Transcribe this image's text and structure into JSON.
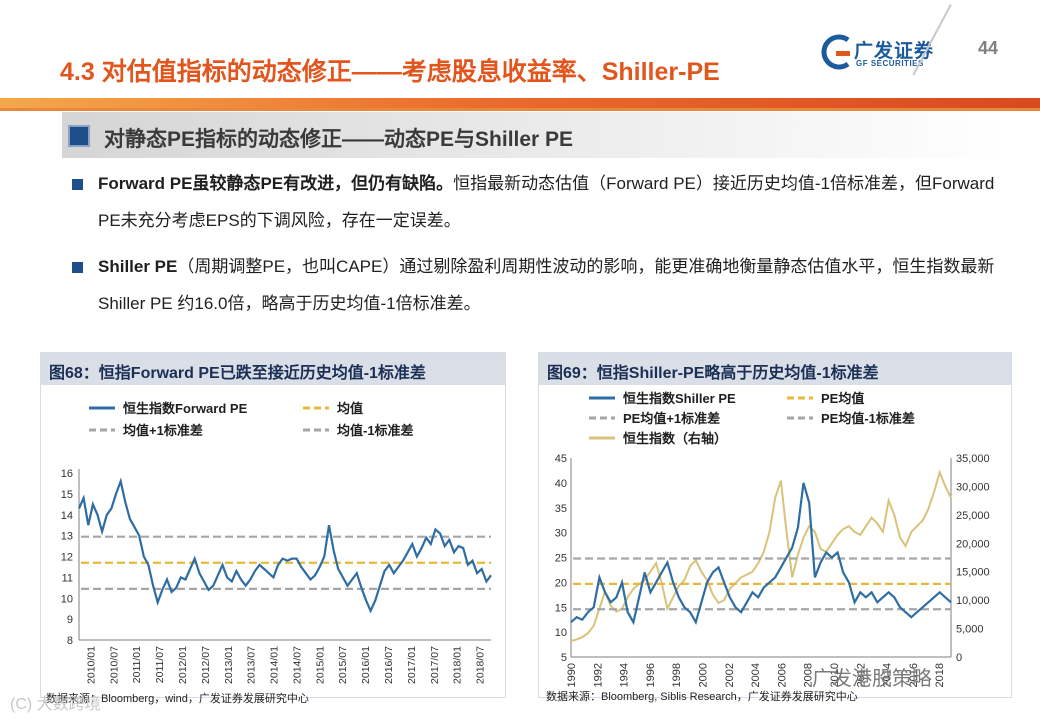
{
  "header": {
    "title": "4.3 对估值指标的动态修正——考虑股息收益率、Shiller-PE",
    "logo_cn": "广发证券",
    "logo_en": "GF SECURITIES",
    "page_number": "44",
    "logo_icon": "gf-logo-icon"
  },
  "section": {
    "heading": "对静态PE指标的动态修正——动态PE与Shiller PE"
  },
  "bullets": [
    {
      "bold": "Forward PE虽较静态PE有改进，但仍有缺陷。",
      "text": "恒指最新动态估值（Forward PE）接近历史均值-1倍标准差，但Forward PE未充分考虑EPS的下调风险，存在一定误差。"
    },
    {
      "bold": "Shiller PE",
      "text": "（周期调整PE，也叫CAPE）通过剔除盈利周期性波动的影响，能更准确地衡量静态估值水平，恒生指数最新Shiller PE 约16.0倍，略高于历史均值-1倍标准差。"
    }
  ],
  "watermarks": {
    "left": "(C) 大数跨境",
    "right": "广发港股策略"
  },
  "chart_data": [
    {
      "type": "line",
      "title": "图68：恒指Forward PE已跌至接近历史均值-1标准差",
      "source": "数据来源：Bloomberg，wind，广发证券发展研究中心",
      "legend": [
        "恒生指数Forward PE",
        "均值",
        "均值+1标准差",
        "均值-1标准差"
      ],
      "ylim": [
        8,
        16
      ],
      "yticks": [
        "8",
        "9",
        "10",
        "11",
        "12",
        "13",
        "14",
        "15",
        "16"
      ],
      "xticks": [
        "2010/01",
        "2010/07",
        "2011/01",
        "2011/07",
        "2012/01",
        "2012/07",
        "2013/01",
        "2013/07",
        "2014/01",
        "2014/07",
        "2015/01",
        "2015/07",
        "2016/01",
        "2016/07",
        "2017/01",
        "2017/07",
        "2018/01",
        "2018/07"
      ],
      "colors": {
        "series": "#2e6da4",
        "mean": "#e6b93c",
        "band": "#a6a6a6"
      },
      "series": [
        {
          "name": "恒生指数Forward PE",
          "x_start": 2010.0,
          "x_end": 2018.9,
          "values": [
            14.3,
            14.8,
            13.5,
            14.5,
            14.0,
            13.2,
            14.0,
            14.3,
            15.0,
            15.6,
            14.6,
            13.8,
            13.4,
            13.0,
            12.0,
            11.6,
            10.6,
            9.8,
            10.4,
            10.9,
            10.3,
            10.5,
            11.0,
            10.9,
            11.4,
            11.9,
            11.2,
            10.8,
            10.4,
            10.6,
            11.1,
            11.6,
            11.0,
            10.8,
            11.3,
            10.9,
            10.6,
            10.9,
            11.3,
            11.6,
            11.4,
            11.2,
            11.0,
            11.6,
            11.9,
            11.8,
            11.9,
            11.9,
            11.5,
            11.2,
            10.9,
            11.1,
            11.5,
            12.0,
            13.5,
            12.3,
            11.4,
            11.0,
            10.6,
            10.9,
            11.2,
            10.5,
            9.9,
            9.4,
            9.9,
            10.6,
            11.3,
            11.6,
            11.2,
            11.5,
            11.8,
            12.2,
            12.6,
            12.0,
            12.4,
            12.9,
            12.6,
            13.3,
            13.1,
            12.5,
            12.8,
            12.2,
            12.5,
            12.4,
            11.6,
            11.8,
            11.2,
            11.4,
            10.8,
            11.1
          ]
        },
        {
          "name": "均值",
          "value": 11.7
        },
        {
          "name": "均值+1标准差",
          "value": 12.95
        },
        {
          "name": "均值-1标准差",
          "value": 10.45
        }
      ]
    },
    {
      "type": "line",
      "title": "图69：恒指Shiller-PE略高于历史均值-1标准差",
      "source": "数据来源：Bloomberg, Siblis Research，广发证券发展研究中心",
      "legend": [
        "恒生指数Shiller PE",
        "PE均值",
        "PE均值+1标准差",
        "PE均值-1标准差",
        "恒生指数（右轴）"
      ],
      "ylim": [
        5,
        45
      ],
      "yticks": [
        "5",
        "10",
        "15",
        "20",
        "25",
        "30",
        "35",
        "40",
        "45"
      ],
      "y2lim": [
        0,
        35000
      ],
      "y2ticks": [
        "0",
        "5,000",
        "10,000",
        "15,000",
        "20,000",
        "25,000",
        "30,000",
        "35,000"
      ],
      "xticks": [
        "1990",
        "1992",
        "1994",
        "1996",
        "1998",
        "2000",
        "2002",
        "2004",
        "2006",
        "2008",
        "2010",
        "2012",
        "2014",
        "2016",
        "2018"
      ],
      "colors": {
        "series": "#2e6da4",
        "index": "#d9c27a",
        "mean": "#e6b93c",
        "band": "#a6a6a6"
      },
      "series": [
        {
          "name": "恒生指数Shiller PE",
          "x_start": 1990.0,
          "x_end": 2018.9,
          "values": [
            12,
            13,
            12.5,
            14,
            15,
            21,
            18,
            16,
            17,
            20,
            14,
            12,
            17,
            22,
            18,
            20,
            22,
            24,
            20,
            17,
            15,
            14,
            12,
            16,
            20,
            22,
            23,
            20,
            17,
            15,
            14,
            16,
            18,
            17,
            19,
            20,
            21,
            23,
            25,
            27,
            31,
            40,
            36,
            21,
            24,
            26,
            25,
            26,
            22,
            20,
            16,
            18,
            17,
            18,
            16,
            17,
            18,
            17,
            15,
            14,
            13,
            14,
            15,
            16,
            17,
            18,
            17,
            16
          ]
        },
        {
          "name": "PE均值",
          "value": 19.7
        },
        {
          "name": "PE均值+1标准差",
          "value": 24.8
        },
        {
          "name": "PE均值-1标准差",
          "value": 14.6
        },
        {
          "name": "恒生指数（右轴）",
          "axis": "right",
          "x_start": 1990.0,
          "x_end": 2018.9,
          "values": [
            2800,
            3100,
            3500,
            4200,
            5500,
            8500,
            11500,
            9000,
            8000,
            8500,
            10500,
            12000,
            12800,
            13500,
            15000,
            16500,
            13000,
            8500,
            10500,
            12500,
            13500,
            16000,
            17000,
            15000,
            13500,
            11000,
            9500,
            10000,
            12000,
            13000,
            14000,
            14500,
            15000,
            16500,
            18500,
            22000,
            28000,
            31000,
            22000,
            14000,
            18000,
            21000,
            23000,
            22000,
            19000,
            18500,
            20000,
            21500,
            22500,
            23000,
            22000,
            21500,
            23000,
            24500,
            23500,
            22000,
            27500,
            25000,
            21000,
            19500,
            22000,
            23000,
            24000,
            26000,
            29000,
            32500,
            30000,
            28000
          ]
        }
      ]
    }
  ]
}
